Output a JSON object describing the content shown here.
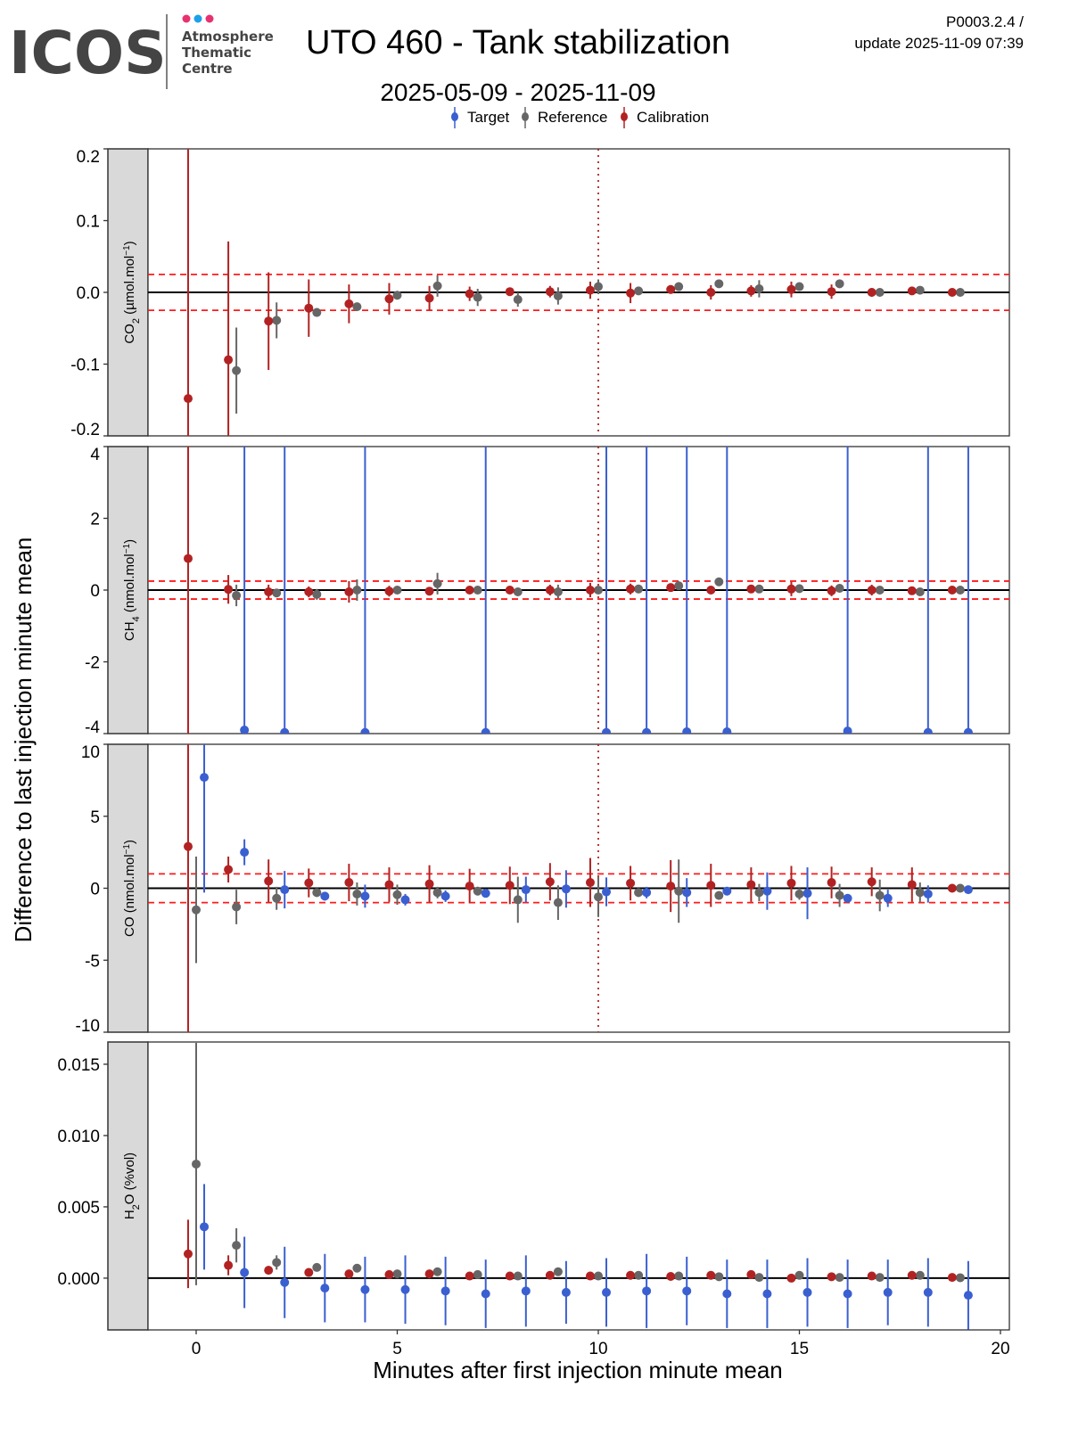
{
  "header": {
    "logo_text": "ICOS",
    "logo_sub": [
      "Atmosphere",
      "Thematic",
      "Centre"
    ],
    "logo_dot_colors": [
      "#e6336f",
      "#1ea0e6",
      "#e6336f"
    ],
    "title": "UTO 460 - Tank stabilization",
    "subtitle": "2025-05-09 - 2025-11-09",
    "version": "P0003.2.4 /",
    "update": "update  2025-11-09 07:39"
  },
  "legend": [
    {
      "label": "Target",
      "color": "#3a5fd0"
    },
    {
      "label": "Reference",
      "color": "#666666"
    },
    {
      "label": "Calibration",
      "color": "#b22222"
    }
  ],
  "chart_data": {
    "type": "scatter",
    "title": "UTO 460 - Tank stabilization",
    "xlabel": "Minutes after first injection minute mean",
    "ylabel": "Difference to last injection minute mean",
    "xlim": [
      -1.2,
      20.2
    ],
    "xticks": [
      "0",
      "5",
      "10",
      "15",
      "20"
    ],
    "xtick_values": [
      0,
      5,
      10,
      15,
      20
    ],
    "vline_x": 10,
    "x": [
      0,
      1,
      2,
      3,
      4,
      5,
      6,
      7,
      8,
      9,
      10,
      11,
      12,
      13,
      14,
      15,
      16,
      17,
      18,
      19
    ],
    "series_offsets": {
      "Target": 0.2,
      "Reference": 0,
      "Calibration": -0.2
    },
    "panels": [
      {
        "species": "CO",
        "sub": "2",
        "unit": " (µmol.mol",
        "sup": "−1",
        "close": ")",
        "ylim": [
          -0.2,
          0.2
        ],
        "yticks": [
          "-0.2",
          "-0.1",
          "0.0",
          "0.1",
          "0.2"
        ],
        "ytick_values": [
          -0.2,
          -0.1,
          0,
          0.1,
          0.2
        ],
        "limit": 0.025,
        "series": [
          {
            "name": "Calibration",
            "values": [
              -0.148,
              -0.094,
              -0.04,
              -0.022,
              -0.016,
              -0.009,
              -0.008,
              -0.002,
              0.001,
              0.001,
              0.003,
              -0.001,
              0.004,
              0,
              0.002,
              0.004,
              0.001,
              0,
              0.002,
              0
            ],
            "err": [
              0.5,
              0.165,
              0.068,
              0.04,
              0.027,
              0.022,
              0.017,
              0.01,
              0.005,
              0.008,
              0.012,
              0.014,
              0.006,
              0.01,
              0.008,
              0.011,
              0.01,
              0.006,
              0.005,
              0.003
            ]
          },
          {
            "name": "Reference",
            "values": [
              null,
              -0.109,
              -0.039,
              -0.028,
              -0.02,
              -0.004,
              0.009,
              -0.007,
              -0.01,
              -0.005,
              0.008,
              0.002,
              0.008,
              0.012,
              0.005,
              0.008,
              0.012,
              0,
              0.003,
              0
            ],
            "err": [
              null,
              0.06,
              0.025,
              0.006,
              0.005,
              0.006,
              0.015,
              0.012,
              0.01,
              0.012,
              0.01,
              0.003,
              0.003,
              0.003,
              0.012,
              0.003,
              0.006,
              0.003,
              0.003,
              0.002
            ]
          },
          {
            "name": "Target",
            "values": [],
            "err": []
          }
        ]
      },
      {
        "species": "CH",
        "sub": "4",
        "unit": " (nmol.mol",
        "sup": "−1",
        "close": ")",
        "ylim": [
          -4,
          4
        ],
        "yticks": [
          "-4",
          "-2",
          "0",
          "2",
          "4"
        ],
        "ytick_values": [
          -4,
          -2,
          0,
          2,
          4
        ],
        "limit": 0.25,
        "series": [
          {
            "name": "Calibration",
            "values": [
              0.88,
              0.02,
              -0.05,
              -0.05,
              -0.05,
              -0.03,
              -0.03,
              0,
              0,
              0,
              0,
              0.03,
              0.07,
              0,
              0.03,
              0.03,
              -0.02,
              0,
              -0.02,
              0
            ],
            "err": [
              10,
              0.4,
              0.2,
              0.15,
              0.3,
              0.15,
              0.1,
              0.1,
              0.05,
              0.15,
              0.2,
              0.15,
              0.1,
              0.05,
              0.1,
              0.2,
              0.15,
              0.15,
              0.1,
              0.05
            ]
          },
          {
            "name": "Reference",
            "values": [
              null,
              -0.15,
              -0.08,
              -0.12,
              0,
              0,
              0.18,
              0,
              -0.05,
              -0.05,
              0,
              0.03,
              0.12,
              0.23,
              0.03,
              0.04,
              0.05,
              0,
              -0.05,
              0
            ],
            "err": [
              null,
              0.3,
              0.1,
              0.15,
              0.3,
              0.1,
              0.3,
              0.05,
              0.05,
              0.2,
              0.1,
              0.05,
              0.05,
              0.05,
              0.05,
              0.05,
              0.05,
              0.05,
              0.05,
              0.05
            ]
          },
          {
            "name": "Target",
            "values": [
              null,
              -3.9,
              -3.97,
              null,
              -3.97,
              null,
              null,
              -3.97,
              null,
              null,
              -3.97,
              -3.97,
              -3.95,
              -3.95,
              null,
              null,
              -3.93,
              null,
              -3.97,
              -3.97
            ],
            "err": [
              null,
              10,
              10,
              null,
              10,
              null,
              null,
              10,
              null,
              null,
              10,
              10,
              10,
              10,
              null,
              null,
              10,
              null,
              10,
              10
            ]
          }
        ]
      },
      {
        "species": "CO",
        "sub": "",
        "unit": " (nmol.mol",
        "sup": "−1",
        "close": ")",
        "ylim": [
          -10,
          10
        ],
        "yticks": [
          "-10",
          "-5",
          "0",
          "5",
          "10"
        ],
        "ytick_values": [
          -10,
          -5,
          0,
          5,
          10
        ],
        "limit": 1,
        "series": [
          {
            "name": "Calibration",
            "values": [
              2.9,
              1.3,
              0.5,
              0.37,
              0.4,
              0.25,
              0.3,
              0.15,
              0.2,
              0.45,
              0.4,
              0.35,
              0.15,
              0.2,
              0.25,
              0.35,
              0.4,
              0.45,
              0.25,
              0
            ],
            "err": [
              15,
              0.9,
              1.5,
              1,
              1.3,
              1.2,
              1.3,
              1.2,
              1.3,
              1.3,
              1.7,
              1.2,
              1.8,
              1.5,
              1.2,
              1.2,
              1.1,
              1,
              1.2,
              0.1
            ]
          },
          {
            "name": "Reference",
            "values": [
              -1.5,
              -1.3,
              -0.7,
              -0.3,
              -0.4,
              -0.45,
              -0.3,
              -0.2,
              -0.8,
              -1,
              -0.6,
              -0.3,
              -0.2,
              -0.5,
              -0.3,
              -0.4,
              -0.5,
              -0.5,
              -0.3,
              0
            ],
            "err": [
              3.7,
              1.2,
              0.8,
              0.3,
              0.8,
              0.7,
              0.4,
              0.3,
              1.6,
              1.2,
              1.4,
              0.3,
              2.2,
              0.3,
              0.6,
              0.4,
              0.8,
              1.1,
              0.7,
              0.1
            ]
          },
          {
            "name": "Target",
            "values": [
              7.7,
              2.5,
              -0.1,
              -0.55,
              -0.55,
              -0.8,
              -0.55,
              -0.35,
              -0.1,
              -0.05,
              -0.25,
              -0.3,
              -0.3,
              -0.2,
              -0.2,
              -0.35,
              -0.7,
              -0.7,
              -0.4,
              -0.1
            ],
            "err": [
              8,
              0.9,
              1.3,
              0.3,
              0.8,
              0.4,
              0.4,
              0.3,
              0.9,
              1.3,
              1,
              0.4,
              1,
              0.2,
              1.3,
              1.8,
              0.3,
              0.6,
              0.6,
              0.2
            ]
          }
        ]
      },
      {
        "species": "H",
        "sub": "2",
        "unit": "O (%vol)",
        "sup": "",
        "close": "",
        "ylim": [
          -0.00363,
          0.01656
        ],
        "yticks": [
          "0.000",
          "0.005",
          "0.010",
          "0.015"
        ],
        "ytick_values": [
          0,
          0.005,
          0.01,
          0.015
        ],
        "limit": null,
        "series": [
          {
            "name": "Calibration",
            "values": [
              0.0017,
              0.0009,
              0.00055,
              0.0004,
              0.0003,
              0.00025,
              0.0003,
              0.00015,
              0.00015,
              0.0002,
              0.00015,
              0.0002,
              0.00012,
              0.0002,
              0.00025,
              0,
              0.0001,
              0.00015,
              0.0002,
              5e-05
            ],
            "err": [
              0.0024,
              0.0007,
              0.0003,
              0.0001,
              0.0001,
              0.0001,
              0.0001,
              0.0001,
              0.0001,
              0.0001,
              0.0001,
              0.0001,
              0.0001,
              0.0001,
              0.0001,
              0.0001,
              0.0001,
              0.0001,
              0.0001,
              0.0001
            ]
          },
          {
            "name": "Reference",
            "values": [
              0.008,
              0.0023,
              0.0011,
              0.00075,
              0.0007,
              0.0003,
              0.00045,
              0.00025,
              0.00015,
              0.00045,
              0.00015,
              0.0002,
              0.00015,
              0.0001,
              5e-05,
              0.0002,
              5e-05,
              5e-05,
              0.0002,
              3e-05
            ],
            "err": [
              0.0085,
              0.0012,
              0.0005,
              0.0001,
              0.0001,
              0.0001,
              0.0001,
              0.0001,
              0.0001,
              0.0001,
              0.0001,
              0.0001,
              0.0001,
              0.0001,
              0.0001,
              0.0001,
              0.0001,
              0.0001,
              0.0001,
              0.0001
            ]
          },
          {
            "name": "Target",
            "values": [
              0.0036,
              0.0004,
              -0.0003,
              -0.0007,
              -0.0008,
              -0.0008,
              -0.0009,
              -0.0011,
              -0.0009,
              -0.001,
              -0.001,
              -0.0009,
              -0.0009,
              -0.0011,
              -0.0011,
              -0.001,
              -0.0011,
              -0.001,
              -0.001,
              -0.0012
            ],
            "err": [
              0.003,
              0.0025,
              0.0025,
              0.0024,
              0.0023,
              0.0024,
              0.0024,
              0.0024,
              0.0025,
              0.0022,
              0.0024,
              0.0026,
              0.0024,
              0.0024,
              0.0024,
              0.0024,
              0.0024,
              0.0023,
              0.0024,
              0.0024
            ]
          }
        ]
      }
    ]
  }
}
